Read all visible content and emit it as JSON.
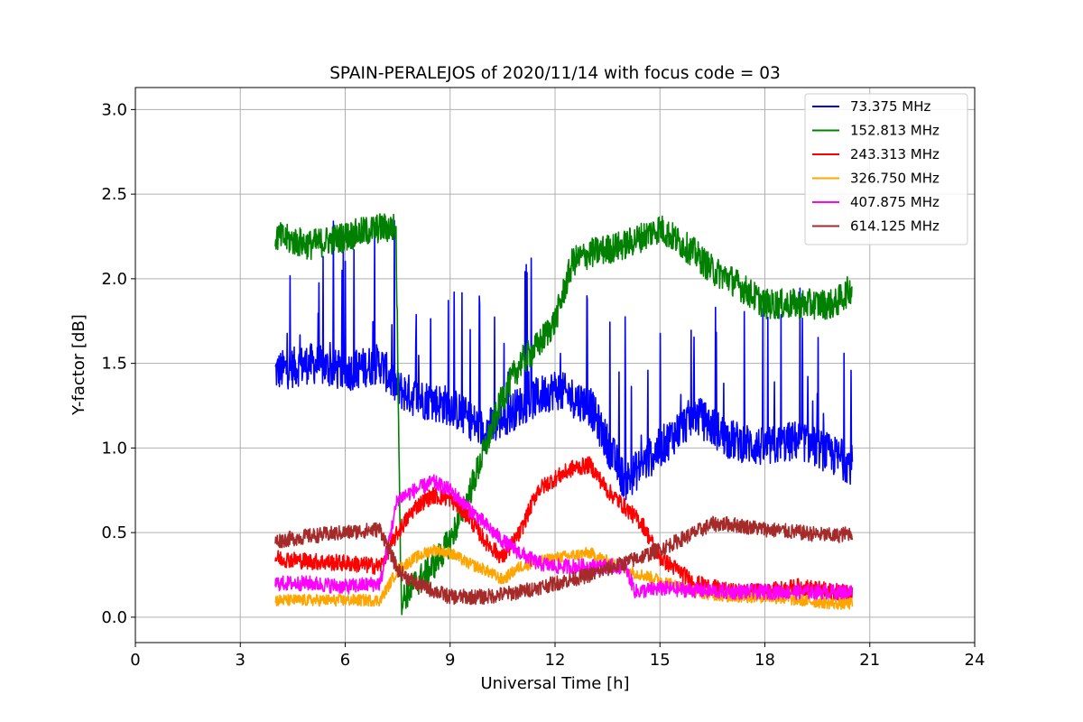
{
  "chart_data": {
    "type": "line",
    "title": "SPAIN-PERALEJOS of 2020/11/14 with focus code = 03",
    "xlabel": "Universal Time [h]",
    "ylabel": "Y-factor [dB]",
    "xlim": [
      0,
      24
    ],
    "ylim": [
      -0.15,
      3.13
    ],
    "xticks": [
      0,
      3,
      6,
      9,
      12,
      15,
      18,
      21,
      24
    ],
    "yticks": [
      0.0,
      0.5,
      1.0,
      1.5,
      2.0,
      2.5,
      3.0
    ],
    "ytick_labels": [
      "0.0",
      "0.5",
      "1.0",
      "1.5",
      "2.0",
      "2.5",
      "3.0"
    ],
    "grid": true,
    "legend_position": "top-right",
    "series": [
      {
        "name": "73.375 MHz",
        "color": "#0000ff",
        "noise": 0.12,
        "x": [
          4.0,
          5.0,
          6.0,
          7.0,
          7.5,
          8.0,
          9.0,
          10.0,
          11.0,
          12.0,
          13.0,
          14.0,
          15.0,
          16.0,
          17.0,
          18.0,
          19.0,
          20.0,
          20.5
        ],
        "y": [
          1.45,
          1.5,
          1.45,
          1.5,
          1.35,
          1.3,
          1.25,
          1.1,
          1.25,
          1.35,
          1.25,
          0.8,
          1.0,
          1.2,
          1.05,
          1.0,
          1.05,
          0.95,
          0.9
        ]
      },
      {
        "name": "152.813 MHz",
        "color": "#008000",
        "noise": 0.09,
        "x": [
          4.0,
          5.0,
          6.0,
          7.0,
          7.45,
          7.6,
          8.0,
          8.5,
          9.0,
          9.5,
          10.0,
          10.5,
          11.0,
          11.5,
          12.0,
          12.5,
          13.0,
          14.0,
          15.0,
          16.0,
          16.5,
          17.0,
          18.0,
          19.0,
          20.0,
          20.5
        ],
        "y": [
          2.25,
          2.2,
          2.25,
          2.3,
          2.3,
          0.1,
          0.2,
          0.3,
          0.45,
          0.7,
          1.0,
          1.3,
          1.5,
          1.6,
          1.75,
          2.1,
          2.15,
          2.2,
          2.3,
          2.15,
          2.05,
          2.0,
          1.85,
          1.85,
          1.85,
          1.95
        ]
      },
      {
        "name": "243.313 MHz",
        "color": "#ff0000",
        "noise": 0.05,
        "x": [
          4.0,
          5.0,
          6.0,
          7.0,
          7.5,
          8.0,
          8.5,
          9.0,
          9.5,
          10.0,
          10.5,
          11.0,
          11.5,
          12.0,
          12.5,
          13.0,
          13.5,
          14.0,
          14.5,
          15.0,
          15.5,
          16.0,
          17.0,
          18.0,
          19.0,
          20.0,
          20.5
        ],
        "y": [
          0.35,
          0.33,
          0.32,
          0.3,
          0.5,
          0.65,
          0.72,
          0.7,
          0.6,
          0.45,
          0.35,
          0.5,
          0.75,
          0.82,
          0.88,
          0.9,
          0.75,
          0.65,
          0.55,
          0.35,
          0.28,
          0.2,
          0.15,
          0.15,
          0.18,
          0.15,
          0.15
        ]
      },
      {
        "name": "326.750 MHz",
        "color": "#ffa500",
        "noise": 0.035,
        "x": [
          4.0,
          5.0,
          6.0,
          7.0,
          7.5,
          8.0,
          8.5,
          9.0,
          9.5,
          10.0,
          10.5,
          11.0,
          12.0,
          13.0,
          14.0,
          15.0,
          16.0,
          17.0,
          18.0,
          19.0,
          20.0,
          20.5
        ],
        "y": [
          0.1,
          0.1,
          0.1,
          0.1,
          0.28,
          0.35,
          0.4,
          0.38,
          0.32,
          0.28,
          0.22,
          0.3,
          0.35,
          0.38,
          0.28,
          0.22,
          0.15,
          0.12,
          0.12,
          0.1,
          0.08,
          0.08
        ]
      },
      {
        "name": "407.875 MHz",
        "color": "#ff00ff",
        "noise": 0.045,
        "x": [
          4.0,
          5.0,
          6.0,
          7.0,
          7.5,
          8.0,
          8.5,
          9.0,
          9.5,
          10.0,
          10.5,
          11.0,
          11.5,
          12.0,
          13.0,
          14.0,
          14.3,
          15.0,
          16.0,
          17.0,
          18.0,
          19.0,
          20.0,
          20.5
        ],
        "y": [
          0.2,
          0.2,
          0.18,
          0.2,
          0.7,
          0.75,
          0.8,
          0.75,
          0.65,
          0.55,
          0.45,
          0.38,
          0.32,
          0.3,
          0.3,
          0.3,
          0.15,
          0.17,
          0.16,
          0.15,
          0.15,
          0.15,
          0.15,
          0.15
        ]
      },
      {
        "name": "614.125 MHz",
        "color": "#a52a2a",
        "noise": 0.045,
        "x": [
          4.0,
          5.0,
          6.0,
          7.0,
          7.5,
          8.0,
          9.0,
          10.0,
          11.0,
          12.0,
          13.0,
          14.0,
          15.0,
          16.0,
          16.5,
          17.0,
          18.0,
          19.0,
          20.0,
          20.5
        ],
        "y": [
          0.45,
          0.48,
          0.5,
          0.52,
          0.28,
          0.2,
          0.12,
          0.12,
          0.15,
          0.2,
          0.25,
          0.32,
          0.4,
          0.5,
          0.55,
          0.55,
          0.52,
          0.5,
          0.48,
          0.5
        ]
      }
    ]
  }
}
